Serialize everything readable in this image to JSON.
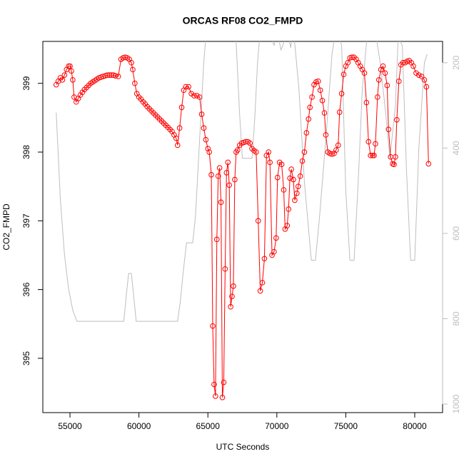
{
  "chart_data": {
    "type": "line",
    "title": "ORCAS RF08 CO2_FMPD",
    "x_label": "UTC Seconds",
    "y_label": "CO2_FMPD",
    "xlim": [
      53030,
      82020
    ],
    "xticks": [
      55000,
      60000,
      65000,
      70000,
      75000,
      80000
    ],
    "ylim": [
      394.21,
      399.61
    ],
    "yticks": [
      395,
      396,
      397,
      398,
      399
    ],
    "y2lim": [
      1020,
      150
    ],
    "y2ticks": [
      200,
      400,
      600,
      800,
      1000
    ],
    "series": [
      {
        "color": "#ff0000",
        "markers": true,
        "x": [
          54000,
          54150,
          54300,
          54450,
          54600,
          54750,
          54900,
          55000,
          55100,
          55200,
          55300,
          55450,
          55600,
          55750,
          55900,
          56050,
          56200,
          56350,
          56500,
          56650,
          56800,
          56950,
          57100,
          57250,
          57400,
          57550,
          57700,
          57850,
          58000,
          58150,
          58300,
          58500,
          58700,
          58850,
          59000,
          59150,
          59300,
          59450,
          59550,
          59700,
          59850,
          60000,
          60150,
          60300,
          60450,
          60600,
          60750,
          60900,
          61050,
          61200,
          61350,
          61500,
          61650,
          61800,
          61950,
          62100,
          62250,
          62400,
          62550,
          62700,
          62800,
          62950,
          63100,
          63250,
          63400,
          63600,
          63800,
          64000,
          64200,
          64400,
          64550,
          64700,
          64850,
          65000,
          65100,
          65250,
          65350,
          65450,
          65550,
          65650,
          65750,
          65850,
          65950,
          66050,
          66150,
          66250,
          66350,
          66450,
          66550,
          66650,
          66750,
          66850,
          66950,
          67050,
          67150,
          67300,
          67450,
          67600,
          67750,
          67900,
          68050,
          68200,
          68350,
          68500,
          68650,
          68800,
          68950,
          69100,
          69250,
          69400,
          69500,
          69650,
          69800,
          69950,
          70050,
          70200,
          70350,
          70500,
          70600,
          70750,
          70850,
          70950,
          71050,
          71200,
          71300,
          71450,
          71550,
          71700,
          71850,
          72000,
          72150,
          72300,
          72400,
          72550,
          72700,
          72850,
          73000,
          73150,
          73300,
          73450,
          73550,
          73700,
          73850,
          74000,
          74150,
          74300,
          74450,
          74550,
          74700,
          74850,
          75000,
          75150,
          75300,
          75450,
          75600,
          75750,
          75900,
          76050,
          76200,
          76350,
          76500,
          76650,
          76800,
          76950,
          77050,
          77150,
          77300,
          77400,
          77550,
          77700,
          77850,
          78000,
          78100,
          78250,
          78400,
          78500,
          78600,
          78700,
          78850,
          79000,
          79150,
          79300,
          79450,
          79600,
          79750,
          79900,
          80100,
          80300,
          80500,
          80700,
          80850,
          81000
        ],
        "values": [
          398.98,
          399.03,
          399.08,
          399.05,
          399.12,
          399.2,
          399.25,
          399.25,
          399.18,
          399.05,
          398.8,
          398.73,
          398.78,
          398.83,
          398.87,
          398.91,
          398.94,
          398.97,
          399.0,
          399.02,
          399.04,
          399.06,
          399.08,
          399.09,
          399.1,
          399.11,
          399.12,
          399.12,
          399.12,
          399.12,
          399.11,
          399.1,
          399.35,
          399.37,
          399.38,
          399.37,
          399.35,
          399.3,
          399.2,
          399.0,
          398.85,
          398.8,
          398.77,
          398.73,
          398.7,
          398.66,
          398.63,
          398.6,
          398.57,
          398.54,
          398.51,
          398.48,
          398.45,
          398.42,
          398.39,
          398.36,
          398.33,
          398.3,
          398.25,
          398.2,
          398.1,
          398.35,
          398.65,
          398.9,
          398.95,
          398.95,
          398.85,
          398.82,
          398.82,
          398.8,
          398.55,
          398.35,
          398.18,
          398.05,
          398.0,
          397.67,
          395.47,
          394.62,
          394.45,
          396.73,
          397.65,
          397.77,
          397.27,
          394.43,
          394.65,
          396.3,
          397.7,
          397.85,
          397.52,
          395.75,
          395.9,
          396.05,
          397.6,
          398.0,
          398.03,
          398.1,
          398.13,
          398.14,
          398.15,
          398.15,
          398.13,
          398.05,
          398.02,
          398.0,
          397.0,
          395.98,
          396.1,
          396.45,
          397.95,
          398.0,
          397.85,
          396.5,
          396.55,
          396.75,
          397.63,
          397.85,
          397.82,
          397.45,
          396.88,
          396.93,
          397.17,
          397.62,
          397.75,
          397.6,
          397.3,
          397.4,
          397.5,
          397.65,
          397.87,
          398.0,
          398.28,
          398.48,
          398.65,
          398.8,
          398.98,
          399.02,
          399.03,
          398.9,
          398.75,
          398.57,
          398.25,
          398.0,
          397.98,
          397.97,
          397.98,
          398.03,
          398.1,
          398.58,
          398.85,
          399.13,
          399.25,
          399.3,
          399.37,
          399.38,
          399.38,
          399.35,
          399.3,
          399.25,
          399.2,
          399.15,
          398.72,
          398.15,
          397.95,
          397.95,
          397.95,
          398.12,
          398.8,
          399.05,
          399.2,
          399.25,
          399.15,
          398.97,
          398.33,
          397.93,
          397.83,
          397.82,
          397.93,
          398.47,
          399.03,
          399.27,
          399.3,
          399.3,
          399.32,
          399.33,
          399.3,
          399.25,
          399.15,
          399.12,
          399.1,
          399.05,
          398.95,
          397.83
        ]
      },
      {
        "color": "#bebebe",
        "axis": "y2",
        "markers": false,
        "x": [
          54000,
          54300,
          54600,
          54900,
          55200,
          55500,
          58900,
          59100,
          59250,
          59450,
          59600,
          59800,
          62800,
          63000,
          63200,
          63450,
          63900,
          64100,
          64400,
          64700,
          64900,
          66000,
          66300,
          66500,
          67000,
          67300,
          67500,
          68200,
          68400,
          68600,
          68800,
          69500,
          69800,
          70000,
          70300,
          70800,
          71000,
          71200,
          71600,
          72000,
          72500,
          72800,
          73100,
          73600,
          74000,
          74300,
          74700,
          75000,
          75300,
          75600,
          75900,
          76200,
          76600,
          77100,
          77500,
          77900,
          78200,
          78600,
          78800,
          79100,
          79400,
          79700,
          80000,
          80300,
          80700,
          80900
        ],
        "values": [
          317,
          520,
          650,
          730,
          780,
          806,
          806,
          740,
          694,
          694,
          740,
          806,
          806,
          760,
          694,
          622,
          622,
          560,
          380,
          200,
          120,
          110,
          140,
          110,
          120,
          320,
          424,
          424,
          330,
          200,
          120,
          130,
          160,
          120,
          170,
          130,
          165,
          120,
          260,
          480,
          663,
          663,
          560,
          360,
          180,
          120,
          160,
          500,
          663,
          663,
          480,
          260,
          120,
          120,
          200,
          320,
          424,
          300,
          140,
          160,
          450,
          663,
          663,
          400,
          200,
          180
        ]
      }
    ]
  }
}
